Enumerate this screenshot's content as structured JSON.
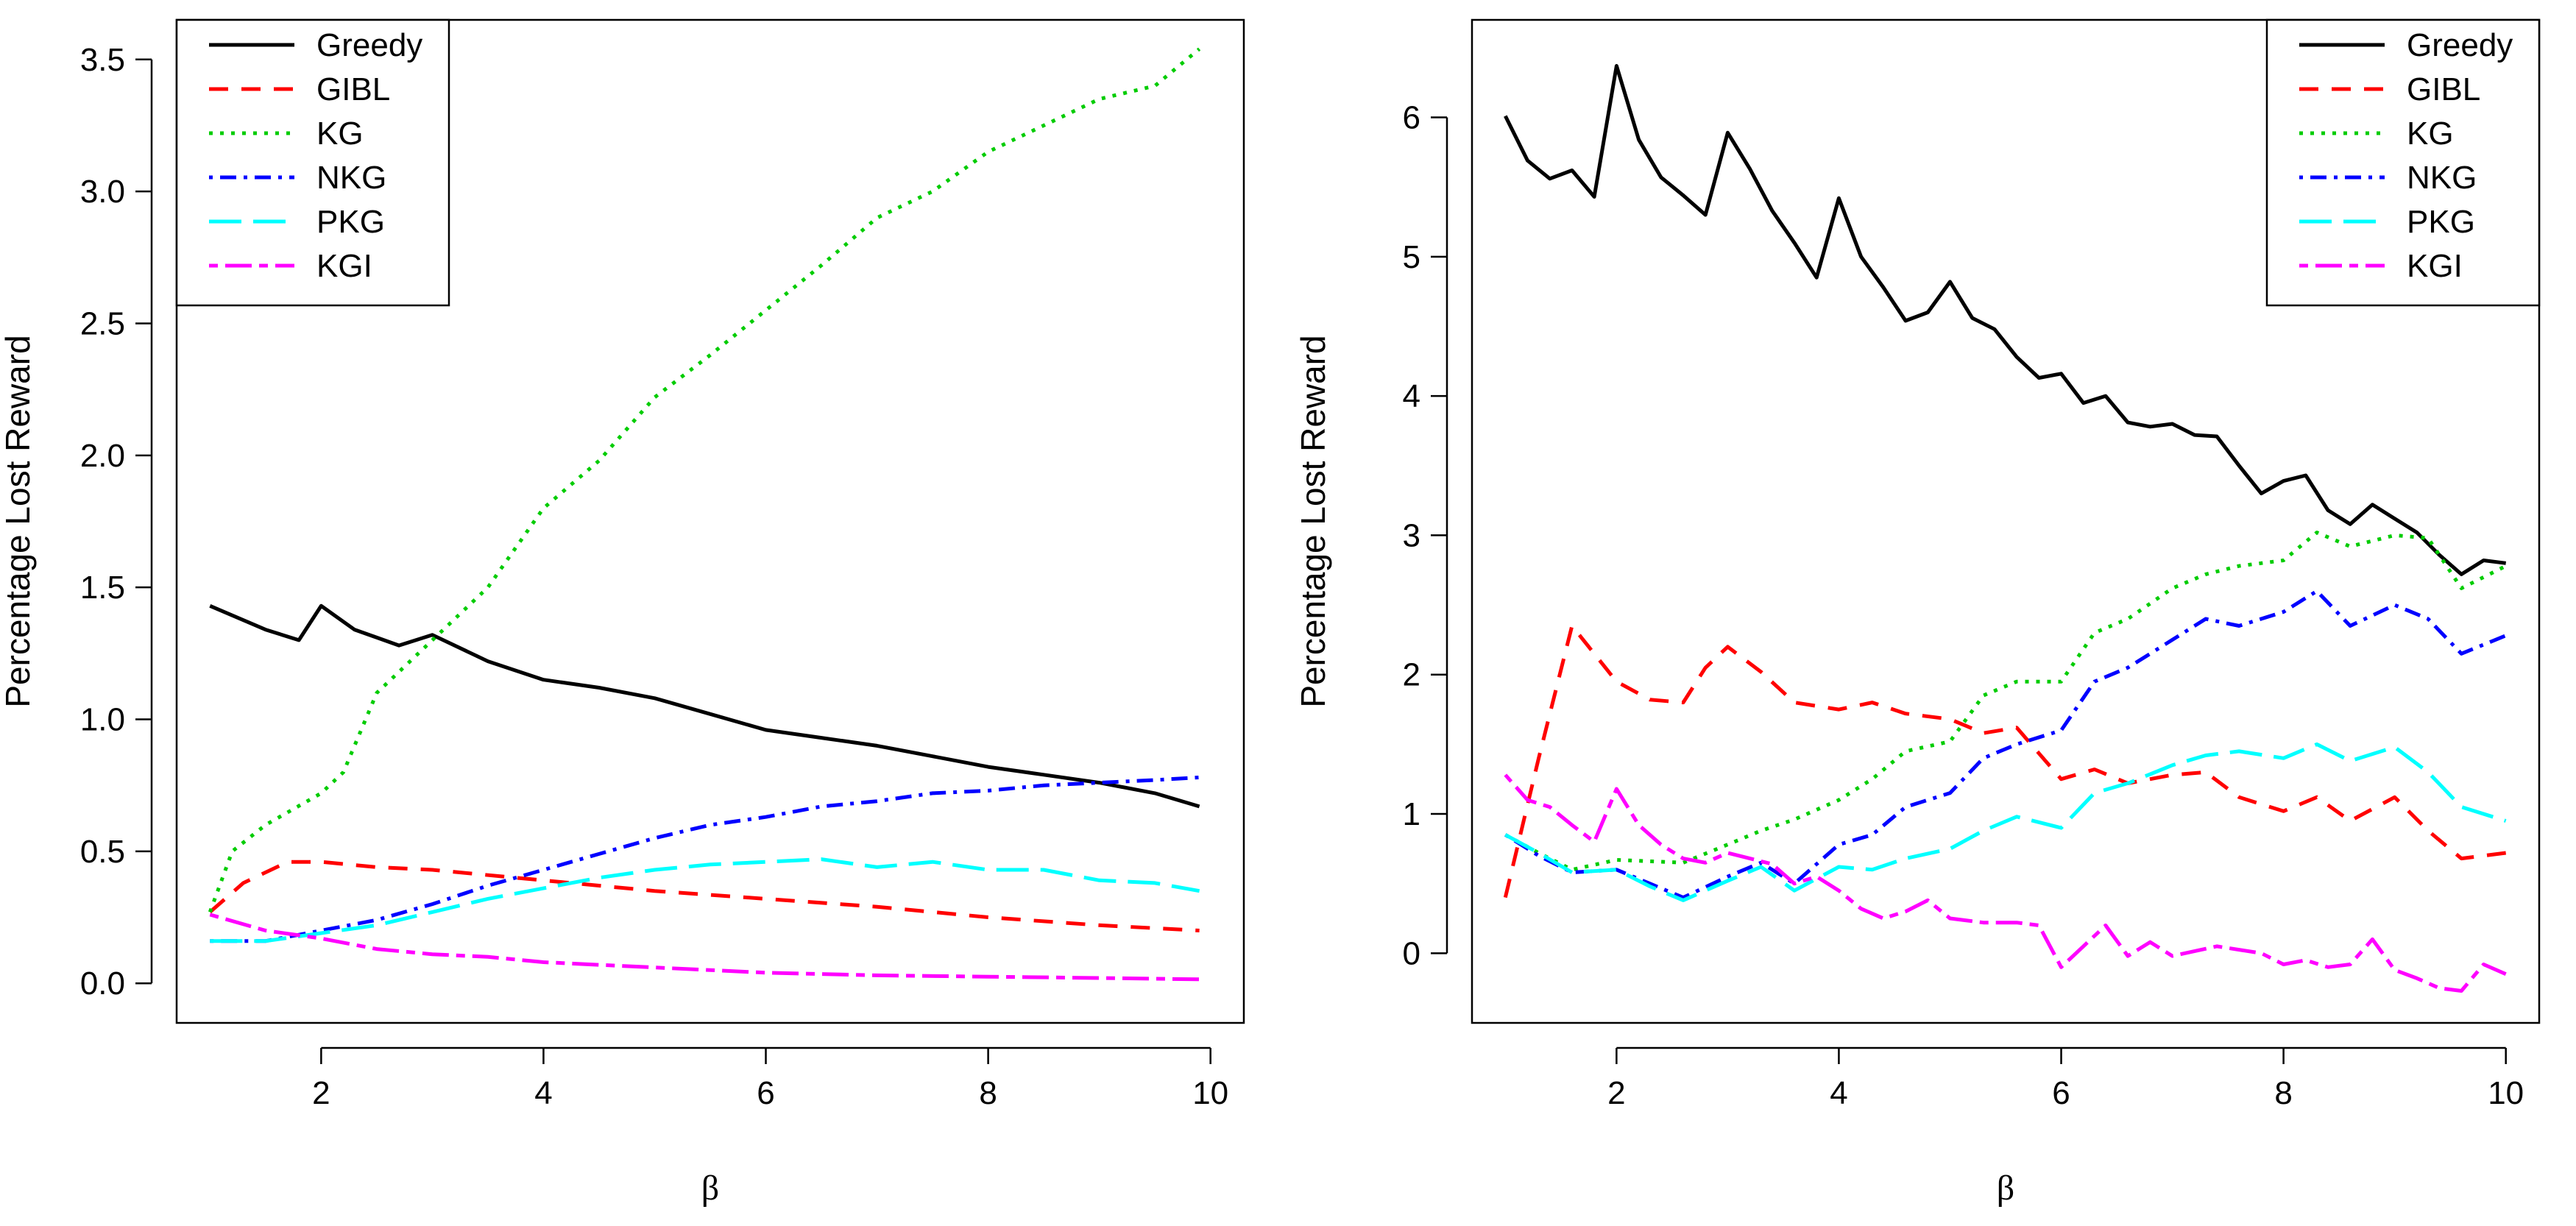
{
  "chart_data": [
    {
      "type": "line",
      "xlabel": "β",
      "ylabel": "Percentage Lost Reward",
      "xlim": [
        0.7,
        10.3
      ],
      "ylim": [
        -0.15,
        3.65
      ],
      "xticks": [
        2,
        4,
        6,
        8,
        10
      ],
      "yticks": [
        0.0,
        0.5,
        1.0,
        1.5,
        2.0,
        2.5,
        3.0,
        3.5
      ],
      "ytick_labels": [
        "0.0",
        "0.5",
        "1.0",
        "1.5",
        "2.0",
        "2.5",
        "3.0",
        "3.5"
      ],
      "legend_position": "top-left",
      "series": [
        {
          "name": "Greedy",
          "color": "#000000",
          "dash": "solid",
          "x": [
            1.0,
            1.5,
            1.8,
            2.0,
            2.3,
            2.7,
            3.0,
            3.5,
            4.0,
            4.5,
            5.0,
            5.5,
            6.0,
            6.5,
            7.0,
            7.5,
            8.0,
            8.5,
            9.0,
            9.5,
            9.9
          ],
          "values": [
            1.43,
            1.34,
            1.3,
            1.43,
            1.34,
            1.28,
            1.32,
            1.22,
            1.15,
            1.12,
            1.08,
            1.02,
            0.96,
            0.93,
            0.9,
            0.86,
            0.82,
            0.79,
            0.76,
            0.72,
            0.67
          ]
        },
        {
          "name": "GIBL",
          "color": "#ff0000",
          "dash": "dashed",
          "x": [
            1.0,
            1.3,
            1.7,
            2.0,
            2.5,
            3.0,
            4.0,
            5.0,
            6.0,
            7.0,
            8.0,
            9.0,
            9.9
          ],
          "values": [
            0.27,
            0.38,
            0.46,
            0.46,
            0.44,
            0.43,
            0.39,
            0.35,
            0.32,
            0.29,
            0.25,
            0.22,
            0.2
          ]
        },
        {
          "name": "KG",
          "color": "#00cc00",
          "dash": "dotted",
          "x": [
            1.0,
            1.2,
            1.5,
            2.0,
            2.2,
            2.5,
            3.0,
            3.5,
            4.0,
            4.5,
            5.0,
            5.5,
            6.0,
            6.5,
            7.0,
            7.5,
            8.0,
            8.5,
            9.0,
            9.5,
            9.9
          ],
          "values": [
            0.27,
            0.5,
            0.6,
            0.72,
            0.8,
            1.1,
            1.3,
            1.5,
            1.8,
            1.98,
            2.22,
            2.38,
            2.55,
            2.72,
            2.9,
            3.0,
            3.15,
            3.25,
            3.35,
            3.4,
            3.54
          ]
        },
        {
          "name": "NKG",
          "color": "#0000ff",
          "dash": "dashdot",
          "x": [
            1.0,
            1.5,
            2.0,
            2.5,
            3.0,
            3.5,
            4.0,
            4.5,
            5.0,
            5.5,
            6.0,
            6.5,
            7.0,
            7.5,
            8.0,
            8.5,
            9.0,
            9.5,
            9.9
          ],
          "values": [
            0.16,
            0.16,
            0.2,
            0.24,
            0.3,
            0.37,
            0.43,
            0.49,
            0.55,
            0.6,
            0.63,
            0.67,
            0.69,
            0.72,
            0.73,
            0.75,
            0.76,
            0.77,
            0.78
          ]
        },
        {
          "name": "PKG",
          "color": "#00ffff",
          "dash": "longdash",
          "x": [
            1.0,
            1.5,
            2.0,
            2.5,
            3.0,
            3.5,
            4.0,
            4.5,
            5.0,
            5.5,
            6.0,
            6.5,
            7.0,
            7.5,
            8.0,
            8.5,
            9.0,
            9.5,
            9.9
          ],
          "values": [
            0.16,
            0.16,
            0.19,
            0.22,
            0.27,
            0.32,
            0.36,
            0.4,
            0.43,
            0.45,
            0.46,
            0.47,
            0.44,
            0.46,
            0.43,
            0.43,
            0.39,
            0.38,
            0.35
          ]
        },
        {
          "name": "KGI",
          "color": "#ff00ff",
          "dash": "twodash",
          "x": [
            1.0,
            1.5,
            2.0,
            2.5,
            3.0,
            3.5,
            4.0,
            4.5,
            5.0,
            6.0,
            7.0,
            8.0,
            9.0,
            9.9
          ],
          "values": [
            0.26,
            0.2,
            0.17,
            0.13,
            0.11,
            0.1,
            0.08,
            0.07,
            0.06,
            0.04,
            0.03,
            0.025,
            0.02,
            0.015
          ]
        }
      ]
    },
    {
      "type": "line",
      "xlabel": "β",
      "ylabel": "Percentage Lost Reward",
      "xlim": [
        0.7,
        10.3
      ],
      "ylim": [
        -0.5,
        6.7
      ],
      "xticks": [
        2,
        4,
        6,
        8,
        10
      ],
      "yticks": [
        0,
        1,
        2,
        3,
        4,
        5,
        6
      ],
      "ytick_labels": [
        "0",
        "1",
        "2",
        "3",
        "4",
        "5",
        "6"
      ],
      "legend_position": "top-right",
      "series": [
        {
          "name": "Greedy",
          "color": "#000000",
          "dash": "solid",
          "x": [
            1.0,
            1.2,
            1.4,
            1.6,
            1.8,
            2.0,
            2.2,
            2.4,
            2.6,
            2.8,
            3.0,
            3.2,
            3.4,
            3.6,
            3.8,
            4.0,
            4.2,
            4.4,
            4.6,
            4.8,
            5.0,
            5.2,
            5.4,
            5.6,
            5.8,
            6.0,
            6.2,
            6.4,
            6.6,
            6.8,
            7.0,
            7.2,
            7.4,
            7.6,
            7.8,
            8.0,
            8.2,
            8.4,
            8.6,
            8.8,
            9.0,
            9.2,
            9.4,
            9.6,
            9.8,
            10.0
          ],
          "values": [
            6.01,
            5.69,
            5.56,
            5.62,
            5.43,
            6.37,
            5.84,
            5.57,
            5.44,
            5.3,
            5.89,
            5.63,
            5.33,
            5.1,
            4.85,
            5.42,
            5.0,
            4.78,
            4.54,
            4.6,
            4.82,
            4.56,
            4.48,
            4.28,
            4.13,
            4.16,
            3.95,
            4.0,
            3.81,
            3.78,
            3.8,
            3.72,
            3.71,
            3.5,
            3.3,
            3.39,
            3.43,
            3.18,
            3.08,
            3.22,
            3.12,
            3.02,
            2.86,
            2.72,
            2.82,
            2.8
          ]
        },
        {
          "name": "GIBL",
          "color": "#ff0000",
          "dash": "dashed",
          "x": [
            1.0,
            1.3,
            1.6,
            2.0,
            2.3,
            2.6,
            2.8,
            3.0,
            3.3,
            3.6,
            4.0,
            4.3,
            4.6,
            5.0,
            5.3,
            5.6,
            6.0,
            6.3,
            6.6,
            7.0,
            7.3,
            7.6,
            8.0,
            8.3,
            8.6,
            9.0,
            9.3,
            9.6,
            10.0
          ],
          "values": [
            0.4,
            1.4,
            2.35,
            1.95,
            1.82,
            1.8,
            2.05,
            2.2,
            2.02,
            1.8,
            1.75,
            1.8,
            1.72,
            1.68,
            1.58,
            1.62,
            1.25,
            1.32,
            1.22,
            1.28,
            1.3,
            1.12,
            1.02,
            1.12,
            0.95,
            1.12,
            0.88,
            0.68,
            0.72
          ]
        },
        {
          "name": "KG",
          "color": "#00cc00",
          "dash": "dotted",
          "x": [
            1.0,
            1.3,
            1.6,
            2.0,
            2.3,
            2.6,
            3.0,
            3.3,
            3.6,
            4.0,
            4.3,
            4.6,
            5.0,
            5.3,
            5.6,
            6.0,
            6.3,
            6.6,
            7.0,
            7.3,
            7.6,
            8.0,
            8.3,
            8.6,
            9.0,
            9.3,
            9.6,
            10.0
          ],
          "values": [
            0.85,
            0.72,
            0.6,
            0.67,
            0.66,
            0.65,
            0.78,
            0.88,
            0.96,
            1.1,
            1.25,
            1.45,
            1.52,
            1.85,
            1.95,
            1.95,
            2.3,
            2.4,
            2.62,
            2.72,
            2.78,
            2.82,
            3.02,
            2.92,
            3.0,
            2.98,
            2.62,
            2.78
          ]
        },
        {
          "name": "NKG",
          "color": "#0000ff",
          "dash": "dashdot",
          "x": [
            1.0,
            1.3,
            1.6,
            2.0,
            2.3,
            2.6,
            3.0,
            3.3,
            3.6,
            4.0,
            4.3,
            4.6,
            5.0,
            5.3,
            5.6,
            6.0,
            6.3,
            6.6,
            7.0,
            7.3,
            7.6,
            8.0,
            8.3,
            8.6,
            9.0,
            9.3,
            9.6,
            10.0
          ],
          "values": [
            0.85,
            0.7,
            0.58,
            0.6,
            0.5,
            0.4,
            0.55,
            0.65,
            0.5,
            0.78,
            0.85,
            1.05,
            1.15,
            1.4,
            1.5,
            1.6,
            1.95,
            2.05,
            2.25,
            2.4,
            2.35,
            2.45,
            2.6,
            2.35,
            2.5,
            2.4,
            2.15,
            2.28
          ]
        },
        {
          "name": "PKG",
          "color": "#00ffff",
          "dash": "longdash",
          "x": [
            1.0,
            1.3,
            1.6,
            2.0,
            2.3,
            2.6,
            3.0,
            3.3,
            3.6,
            4.0,
            4.3,
            4.6,
            5.0,
            5.3,
            5.6,
            6.0,
            6.3,
            6.6,
            7.0,
            7.3,
            7.6,
            8.0,
            8.3,
            8.6,
            9.0,
            9.3,
            9.6,
            10.0
          ],
          "values": [
            0.85,
            0.72,
            0.58,
            0.6,
            0.48,
            0.38,
            0.52,
            0.62,
            0.45,
            0.62,
            0.6,
            0.68,
            0.75,
            0.88,
            0.98,
            0.9,
            1.15,
            1.22,
            1.35,
            1.42,
            1.45,
            1.4,
            1.5,
            1.38,
            1.48,
            1.3,
            1.05,
            0.95
          ]
        },
        {
          "name": "KGI",
          "color": "#ff00ff",
          "dash": "twodash",
          "x": [
            1.0,
            1.2,
            1.4,
            1.6,
            1.8,
            2.0,
            2.2,
            2.4,
            2.6,
            2.8,
            3.0,
            3.2,
            3.4,
            3.6,
            3.8,
            4.0,
            4.2,
            4.4,
            4.6,
            4.8,
            5.0,
            5.3,
            5.6,
            5.8,
            6.0,
            6.2,
            6.4,
            6.6,
            6.8,
            7.0,
            7.4,
            7.8,
            8.0,
            8.2,
            8.4,
            8.6,
            8.8,
            9.0,
            9.2,
            9.4,
            9.6,
            9.8,
            10.0
          ],
          "values": [
            1.28,
            1.1,
            1.05,
            0.92,
            0.8,
            1.18,
            0.92,
            0.78,
            0.68,
            0.65,
            0.72,
            0.68,
            0.64,
            0.5,
            0.55,
            0.45,
            0.32,
            0.25,
            0.3,
            0.38,
            0.25,
            0.22,
            0.22,
            0.2,
            -0.1,
            0.05,
            0.2,
            -0.02,
            0.08,
            -0.02,
            0.05,
            0.0,
            -0.08,
            -0.05,
            -0.1,
            -0.08,
            0.1,
            -0.12,
            -0.18,
            -0.25,
            -0.27,
            -0.08,
            -0.15
          ]
        }
      ]
    }
  ]
}
